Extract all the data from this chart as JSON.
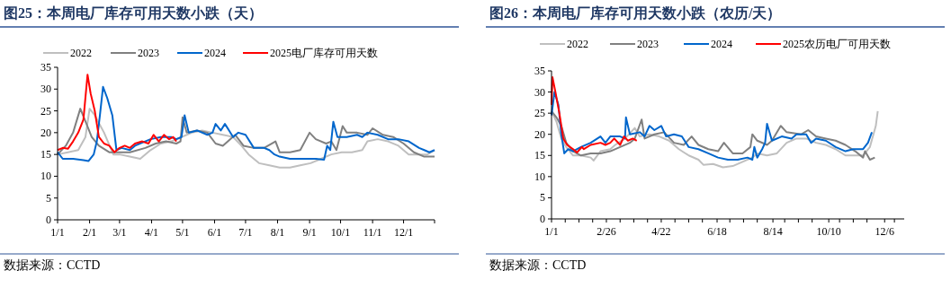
{
  "chart_data": [
    {
      "type": "line",
      "title": "图25：本周电厂库存可用天数小跌（天）",
      "annotations": [
        "数据来源：CCTD"
      ],
      "legend": "top",
      "grid": false,
      "xlim": [
        "--01-01",
        "--12-31"
      ],
      "xticks": [
        {
          "value": "--01-01",
          "label": "1/1"
        },
        {
          "value": "--02-01",
          "label": "2/1"
        },
        {
          "value": "--03-01",
          "label": "3/1"
        },
        {
          "value": "--04-01",
          "label": "4/1"
        },
        {
          "value": "--05-01",
          "label": "5/1"
        },
        {
          "value": "--06-01",
          "label": "6/1"
        },
        {
          "value": "--07-01",
          "label": "7/1"
        },
        {
          "value": "--08-01",
          "label": "8/1"
        },
        {
          "value": "--09-01",
          "label": "9/1"
        },
        {
          "value": "--10-01",
          "label": "10/1"
        },
        {
          "value": "--11-01",
          "label": "11/1"
        },
        {
          "value": "--12-01",
          "label": "12/1"
        },
        {
          "value": "--12-31",
          "label": null
        }
      ],
      "ylim": [
        0,
        35
      ],
      "yticks": [
        0,
        5,
        10,
        15,
        20,
        25,
        30,
        35
      ],
      "series": [
        {
          "name": "2022",
          "color": "#bfbfbf",
          "x": [
            "--01-01",
            "--01-11",
            "--01-21",
            "--01-28",
            "--02-01",
            "--02-06",
            "--02-15",
            "--02-24",
            "--03-01",
            "--03-11",
            "--03-21",
            "--03-31",
            "--04-10",
            "--04-20",
            "--04-30",
            "--05-10",
            "--05-20",
            "--05-30",
            "--06-09",
            "--06-19",
            "--06-27",
            "--07-04",
            "--07-14",
            "--07-24",
            "--08-03",
            "--08-13",
            "--08-23",
            "--09-02",
            "--09-12",
            "--09-22",
            "--10-02",
            "--10-12",
            "--10-22",
            "--10-27",
            "--11-06",
            "--11-16",
            "--11-26",
            "--12-06",
            "--12-16",
            "--12-24",
            "--12-31"
          ],
          "values": [
            15,
            15.5,
            16,
            19,
            25.5,
            24,
            20,
            15,
            15,
            14.5,
            14,
            16,
            17.5,
            18,
            19,
            20,
            20.5,
            20,
            19.5,
            19,
            17,
            15,
            13,
            12.5,
            12,
            12,
            12.5,
            13,
            14,
            15,
            15.5,
            15.5,
            16,
            18,
            18.5,
            18,
            17,
            15,
            15,
            15,
            16
          ]
        },
        {
          "name": "2023",
          "color": "#808080",
          "x": [
            "--01-01",
            "--01-09",
            "--01-16",
            "--01-23",
            "--01-29",
            "--02-03",
            "--02-10",
            "--02-20",
            "--03-01",
            "--03-11",
            "--03-26",
            "--04-05",
            "--04-15",
            "--04-25",
            "--04-29",
            "--05-01",
            "--05-05",
            "--05-15",
            "--05-25",
            "--06-02",
            "--06-09",
            "--06-21",
            "--06-29",
            "--07-09",
            "--07-19",
            "--07-30",
            "--08-03",
            "--08-13",
            "--08-23",
            "--09-01",
            "--09-07",
            "--09-17",
            "--09-22",
            "--09-27",
            "--10-03",
            "--10-07",
            "--10-17",
            "--10-27",
            "--11-01",
            "--11-11",
            "--11-21",
            "--12-01",
            "--12-11",
            "--12-21",
            "--12-31"
          ],
          "values": [
            15,
            17,
            20,
            25.5,
            22,
            19,
            17,
            15.5,
            15.5,
            15.5,
            16.5,
            17.5,
            18,
            17.5,
            18,
            23.5,
            20,
            20.5,
            20,
            17.5,
            17,
            19.5,
            17,
            16.5,
            16.5,
            18,
            15.5,
            15.5,
            16,
            20,
            18.5,
            17.5,
            18,
            16,
            21.5,
            20,
            20,
            19.5,
            21,
            19.5,
            19,
            17.5,
            15.5,
            14.5,
            14.5
          ]
        },
        {
          "name": "2024",
          "color": "#0066cc",
          "x": [
            "--01-01",
            "--01-06",
            "--01-16",
            "--01-26",
            "--01-31",
            "--02-05",
            "--02-08",
            "--02-11",
            "--02-14",
            "--02-18",
            "--02-23",
            "--02-27",
            "--03-03",
            "--03-11",
            "--03-16",
            "--03-31",
            "--04-10",
            "--04-20",
            "--04-25",
            "--04-30",
            "--05-03",
            "--05-07",
            "--05-15",
            "--05-25",
            "--05-30",
            "--06-02",
            "--06-07",
            "--06-11",
            "--06-19",
            "--06-24",
            "--07-01",
            "--07-09",
            "--07-19",
            "--07-24",
            "--07-29",
            "--08-03",
            "--08-13",
            "--08-23",
            "--09-02",
            "--09-07",
            "--09-15",
            "--09-18",
            "--09-21",
            "--09-24",
            "--09-28",
            "--10-07",
            "--10-17",
            "--10-22",
            "--10-27",
            "--11-06",
            "--11-16",
            "--11-26",
            "--12-06",
            "--12-16",
            "--12-21",
            "--12-26",
            "--12-31"
          ],
          "values": [
            15.5,
            14,
            14,
            13.7,
            13.5,
            15,
            18,
            24,
            30.5,
            28,
            24,
            16,
            16.5,
            16,
            17,
            18.5,
            19,
            19,
            18.5,
            19,
            24,
            20,
            20.5,
            19.5,
            20,
            22,
            20.5,
            22,
            19,
            20,
            19.5,
            16.5,
            16.5,
            16,
            15,
            14.5,
            14,
            14,
            14,
            14,
            13.8,
            17,
            16,
            22.5,
            19,
            19,
            19.5,
            19,
            20,
            19.5,
            18.5,
            18.5,
            18,
            16.5,
            16,
            15.5,
            16
          ]
        },
        {
          "name": "2025电厂库存可用天数",
          "color": "#ff0000",
          "x": [
            "--01-01",
            "--01-06",
            "--01-11",
            "--01-16",
            "--01-21",
            "--01-26",
            "--01-30",
            "--02-02",
            "--02-06",
            "--02-10",
            "--02-15",
            "--02-20",
            "--02-25",
            "--03-01",
            "--03-06",
            "--03-11",
            "--03-16",
            "--03-23",
            "--03-29",
            "--04-03",
            "--04-08",
            "--04-13",
            "--04-18",
            "--04-22",
            "--04-25"
          ],
          "values": [
            16,
            16.5,
            16.3,
            18,
            20,
            23,
            33.3,
            29,
            25,
            19,
            17.5,
            17,
            15.5,
            16.5,
            17,
            16.5,
            17.5,
            18,
            17.5,
            19.5,
            18,
            19.5,
            18.5,
            19,
            18
          ]
        }
      ]
    },
    {
      "type": "line",
      "title": "图26：本周电厂库存可用天数小跌（农历/天）",
      "annotations": [
        "数据来源：CCTD"
      ],
      "legend": "top",
      "grid": false,
      "xlim": [
        "--01-01",
        "--12-26"
      ],
      "xticks": [
        {
          "value": "--01-01",
          "label": "1/1"
        },
        {
          "value": "--01-15",
          "label": null
        },
        {
          "value": "--01-29",
          "label": null
        },
        {
          "value": "--02-12",
          "label": null
        },
        {
          "value": "--02-26",
          "label": "2/26"
        },
        {
          "value": "--03-11",
          "label": null
        },
        {
          "value": "--03-25",
          "label": null
        },
        {
          "value": "--04-08",
          "label": null
        },
        {
          "value": "--04-22",
          "label": "4/22"
        },
        {
          "value": "--05-06",
          "label": null
        },
        {
          "value": "--05-20",
          "label": null
        },
        {
          "value": "--06-03",
          "label": null
        },
        {
          "value": "--06-18",
          "label": "6/18"
        },
        {
          "value": "--07-01",
          "label": null
        },
        {
          "value": "--07-15",
          "label": null
        },
        {
          "value": "--07-29",
          "label": null
        },
        {
          "value": "--08-14",
          "label": "8/14"
        },
        {
          "value": "--08-26",
          "label": null
        },
        {
          "value": "--09-09",
          "label": null
        },
        {
          "value": "--09-23",
          "label": null
        },
        {
          "value": "--10-10",
          "label": "10/10"
        },
        {
          "value": "--10-21",
          "label": null
        },
        {
          "value": "--11-04",
          "label": null
        },
        {
          "value": "--11-18",
          "label": null
        },
        {
          "value": "--12-06",
          "label": "12/6"
        },
        {
          "value": "--12-16",
          "label": null
        }
      ],
      "ylim": [
        0,
        35
      ],
      "yticks": [
        0,
        5,
        10,
        15,
        20,
        25,
        30,
        35
      ],
      "series": [
        {
          "name": "2022",
          "color": "#bfbfbf",
          "x": [
            "--01-01",
            "--01-06",
            "--01-11",
            "--01-16",
            "--01-23",
            "--01-31",
            "--02-10",
            "--02-13",
            "--02-20",
            "--03-01",
            "--03-06",
            "--03-16",
            "--03-26",
            "--03-31",
            "--04-10",
            "--04-20",
            "--04-30",
            "--05-10",
            "--05-20",
            "--05-30",
            "--06-04",
            "--06-14",
            "--06-24",
            "--07-04",
            "--07-14",
            "--07-24",
            "--07-29",
            "--08-08",
            "--08-18",
            "--08-28",
            "--09-07",
            "--09-17",
            "--09-27",
            "--10-07",
            "--10-17",
            "--10-27",
            "--11-06",
            "--11-14",
            "--11-21",
            "--11-27",
            "--11-29"
          ],
          "values": [
            25.5,
            23,
            19,
            17,
            15,
            15,
            14.5,
            13.8,
            16,
            16.5,
            17.5,
            19,
            21.5,
            19.5,
            20,
            19.5,
            18.5,
            16.5,
            15,
            14,
            12.8,
            13,
            12.2,
            12.5,
            13.5,
            14.5,
            15.5,
            15,
            15.5,
            18,
            19,
            19,
            18,
            17.5,
            16.5,
            15,
            15,
            15,
            17,
            22,
            25.5
          ]
        },
        {
          "name": "2023",
          "color": "#808080",
          "x": [
            "--01-01",
            "--01-06",
            "--01-11",
            "--01-16",
            "--01-23",
            "--01-31",
            "--02-10",
            "--02-20",
            "--03-01",
            "--03-11",
            "--03-21",
            "--03-26",
            "--04-02",
            "--04-05",
            "--04-15",
            "--04-25",
            "--05-05",
            "--05-15",
            "--05-23",
            "--05-30",
            "--06-09",
            "--06-19",
            "--06-25",
            "--07-04",
            "--07-14",
            "--07-22",
            "--07-24",
            "--07-29",
            "--08-08",
            "--08-13",
            "--08-22",
            "--08-28",
            "--09-12",
            "--09-19",
            "--09-27",
            "--10-07",
            "--10-17",
            "--10-27",
            "--11-06",
            "--11-14",
            "--11-16",
            "--11-21",
            "--11-26"
          ],
          "values": [
            25.5,
            24,
            22,
            18,
            16,
            15,
            15.5,
            15.5,
            16,
            17,
            18,
            19,
            23.5,
            19,
            20,
            20.5,
            18,
            17.5,
            19.5,
            17.5,
            16.5,
            16,
            18,
            15.5,
            15.5,
            17,
            20,
            18.5,
            17.5,
            18.5,
            22,
            20.5,
            20,
            21,
            19.5,
            19,
            18.5,
            17.5,
            16,
            14.5,
            16,
            14,
            14.5
          ]
        },
        {
          "name": "2024",
          "color": "#0066cc",
          "x": [
            "--01-01",
            "--01-04",
            "--01-08",
            "--01-11",
            "--01-14",
            "--01-18",
            "--01-23",
            "--01-31",
            "--02-10",
            "--02-20",
            "--02-25",
            "--03-01",
            "--03-11",
            "--03-16",
            "--03-17",
            "--03-21",
            "--03-31",
            "--04-05",
            "--04-10",
            "--04-15",
            "--04-22",
            "--04-27",
            "--05-05",
            "--05-13",
            "--05-20",
            "--05-30",
            "--06-09",
            "--06-19",
            "--06-29",
            "--07-09",
            "--07-19",
            "--07-24",
            "--07-26",
            "--07-29",
            "--08-03",
            "--08-06",
            "--08-08",
            "--08-13",
            "--08-23",
            "--09-02",
            "--09-07",
            "--09-17",
            "--09-22",
            "--09-27",
            "--10-07",
            "--10-17",
            "--10-27",
            "--11-04",
            "--11-14",
            "--11-19",
            "--11-23"
          ],
          "values": [
            24.5,
            30,
            27,
            20,
            15.5,
            16.5,
            16,
            17,
            18,
            19.5,
            18,
            19.5,
            19.5,
            19,
            24,
            20,
            20.5,
            19.5,
            22,
            21,
            22,
            19.5,
            20,
            19.5,
            17,
            16.5,
            15.5,
            14.5,
            14,
            14,
            14.5,
            14,
            17,
            14.5,
            16.5,
            18,
            22.5,
            18.5,
            19.5,
            19,
            20,
            20,
            18,
            19,
            18.5,
            17,
            16,
            16.5,
            16.5,
            18,
            20.5
          ]
        },
        {
          "name": "2025农历电厂可用天数",
          "color": "#ff0000",
          "x": [
            "--01-01",
            "--01-02",
            "--01-05",
            "--01-09",
            "--01-13",
            "--01-17",
            "--01-23",
            "--01-27",
            "--02-01",
            "--02-03",
            "--02-10",
            "--02-20",
            "--02-25",
            "--03-01",
            "--03-05",
            "--03-11",
            "--03-15",
            "--03-19",
            "--03-24",
            "--03-28"
          ],
          "values": [
            27,
            33.5,
            30,
            25,
            19,
            17.5,
            16.5,
            15.7,
            17,
            16.5,
            17.5,
            18,
            17.5,
            18,
            19,
            17.5,
            19.5,
            18.5,
            19,
            18.5
          ]
        }
      ]
    }
  ]
}
